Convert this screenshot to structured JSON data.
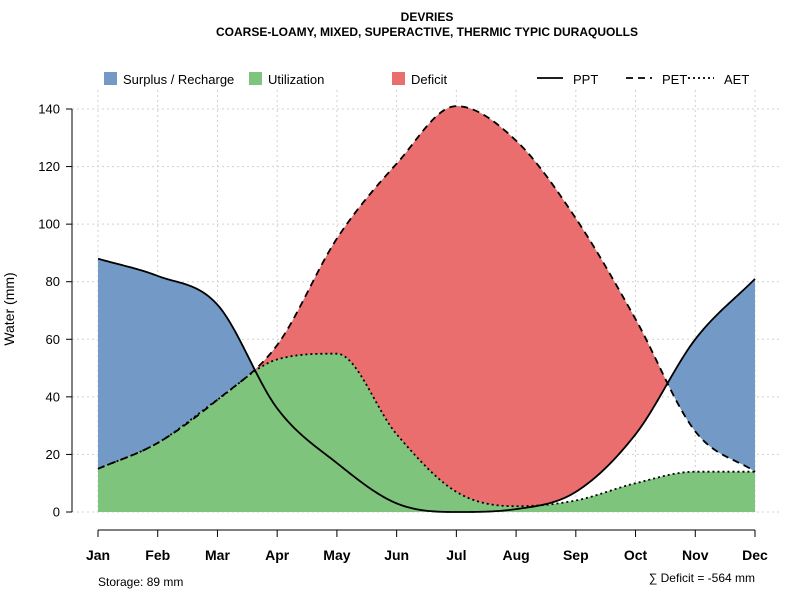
{
  "chart_data": {
    "type": "area",
    "title": "DEVRIES",
    "subtitle": "COARSE-LOAMY, MIXED, SUPERACTIVE, THERMIC TYPIC DURAQUOLLS",
    "ylabel": "Water (mm)",
    "xlabel": "",
    "categories": [
      "Jan",
      "Feb",
      "Mar",
      "Apr",
      "May",
      "Jun",
      "Jul",
      "Aug",
      "Sep",
      "Oct",
      "Nov",
      "Dec"
    ],
    "yticks": [
      0,
      20,
      40,
      60,
      80,
      100,
      120,
      140
    ],
    "ylim": [
      0,
      146
    ],
    "grid": true,
    "series": [
      {
        "name": "PPT",
        "style": "solid",
        "values": [
          88,
          82,
          72,
          36,
          17,
          3,
          0,
          1,
          7,
          27,
          60,
          81
        ]
      },
      {
        "name": "PET",
        "style": "dashed",
        "values": [
          15,
          24,
          39,
          58,
          95,
          121,
          141,
          129,
          102,
          67,
          28,
          14
        ]
      },
      {
        "name": "AET",
        "style": "dotted",
        "values": [
          15,
          24,
          39,
          53,
          55,
          27,
          7,
          2,
          4,
          10,
          14,
          14
        ]
      }
    ],
    "areas": [
      {
        "name": "Surplus / Recharge",
        "color": "#7399c6"
      },
      {
        "name": "Utilization",
        "color": "#7fc47c"
      },
      {
        "name": "Deficit",
        "color": "#ea6e6e"
      }
    ],
    "legend_position": "top",
    "storage_note": "Storage: 89 mm",
    "deficit_note": "∑ Deficit = -564 mm"
  }
}
